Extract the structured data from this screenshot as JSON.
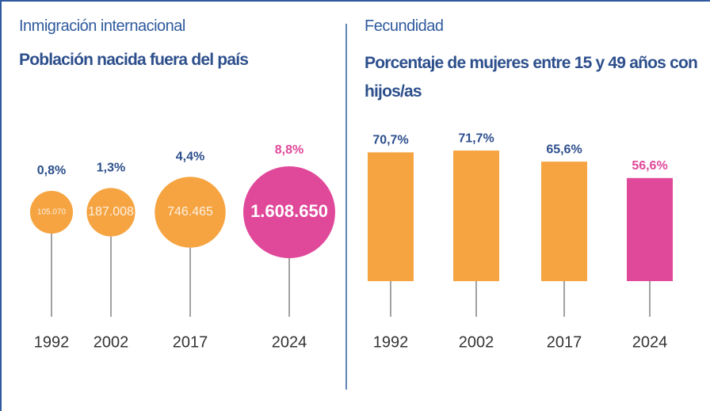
{
  "chart_data": [
    {
      "type": "bubble",
      "supertitle": "Inmigración internacional",
      "title": "Población nacida fuera del país",
      "categories": [
        "1992",
        "2002",
        "2017",
        "2024"
      ],
      "values": [
        0.8,
        1.3,
        4.4,
        8.8
      ],
      "value_labels": [
        "0,8%",
        "1,3%",
        "4,4%",
        "8,8%"
      ],
      "sizes": [
        105070,
        187008,
        746465,
        1608650
      ],
      "size_labels": [
        "105.070",
        "187.008",
        "746.465",
        "1.608.650"
      ],
      "colors": [
        "#f6a441",
        "#f6a441",
        "#f6a441",
        "#e0489a"
      ],
      "label_colors": [
        "#2d4f8c",
        "#2d4f8c",
        "#2d4f8c",
        "#e0489a"
      ]
    },
    {
      "type": "bar",
      "supertitle": "Fecundidad",
      "title": "Porcentaje de mujeres entre 15 y 49 años con hijos/as",
      "categories": [
        "1992",
        "2002",
        "2017",
        "2024"
      ],
      "values": [
        70.7,
        71.7,
        65.6,
        56.6
      ],
      "value_labels": [
        "70,7%",
        "71,7%",
        "65,6%",
        "56,6%"
      ],
      "colors": [
        "#f6a441",
        "#f6a441",
        "#f6a441",
        "#e0489a"
      ],
      "label_colors": [
        "#2d4f8c",
        "#2d4f8c",
        "#2d4f8c",
        "#e0489a"
      ]
    }
  ]
}
